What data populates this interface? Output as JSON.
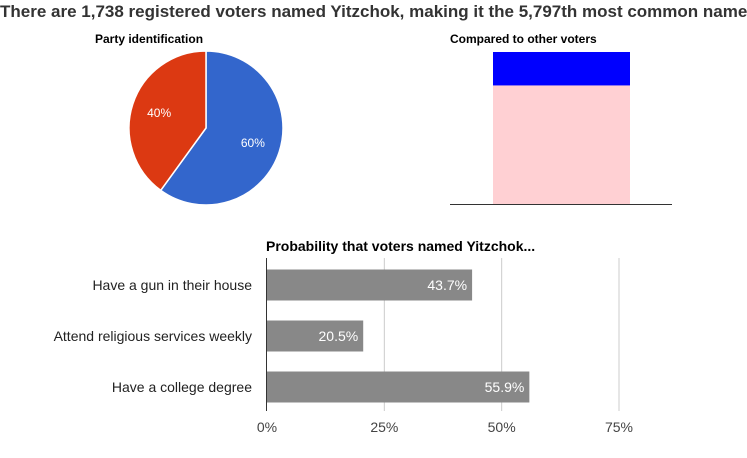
{
  "headline": "There are 1,738 registered voters named Yitzchok, making it the 5,797th most common name",
  "chart_data": [
    {
      "type": "pie",
      "title": "Party identification",
      "slices": [
        {
          "label": "60%",
          "value": 60,
          "color": "#3366cc"
        },
        {
          "label": "40%",
          "value": 40,
          "color": "#dc3912"
        }
      ]
    },
    {
      "type": "bar",
      "title": "Compared to other voters",
      "stacked": true,
      "segments": [
        {
          "value": 78,
          "color": "#ffd0d3"
        },
        {
          "value": 22,
          "color": "#0000ff"
        }
      ],
      "ylim": [
        0,
        100
      ]
    },
    {
      "type": "bar",
      "orientation": "horizontal",
      "title": "Probability that voters named Yitzchok...",
      "categories": [
        "Have a gun in their house",
        "Attend religious services weekly",
        "Have a college degree"
      ],
      "values": [
        43.7,
        20.5,
        55.9
      ],
      "value_labels": [
        "43.7%",
        "20.5%",
        "55.9%"
      ],
      "xlim": [
        0,
        75
      ],
      "xticks": [
        0,
        25,
        50,
        75
      ],
      "xtick_labels": [
        "0%",
        "25%",
        "50%",
        "75%"
      ],
      "bar_color": "#888888",
      "grid": true
    }
  ]
}
